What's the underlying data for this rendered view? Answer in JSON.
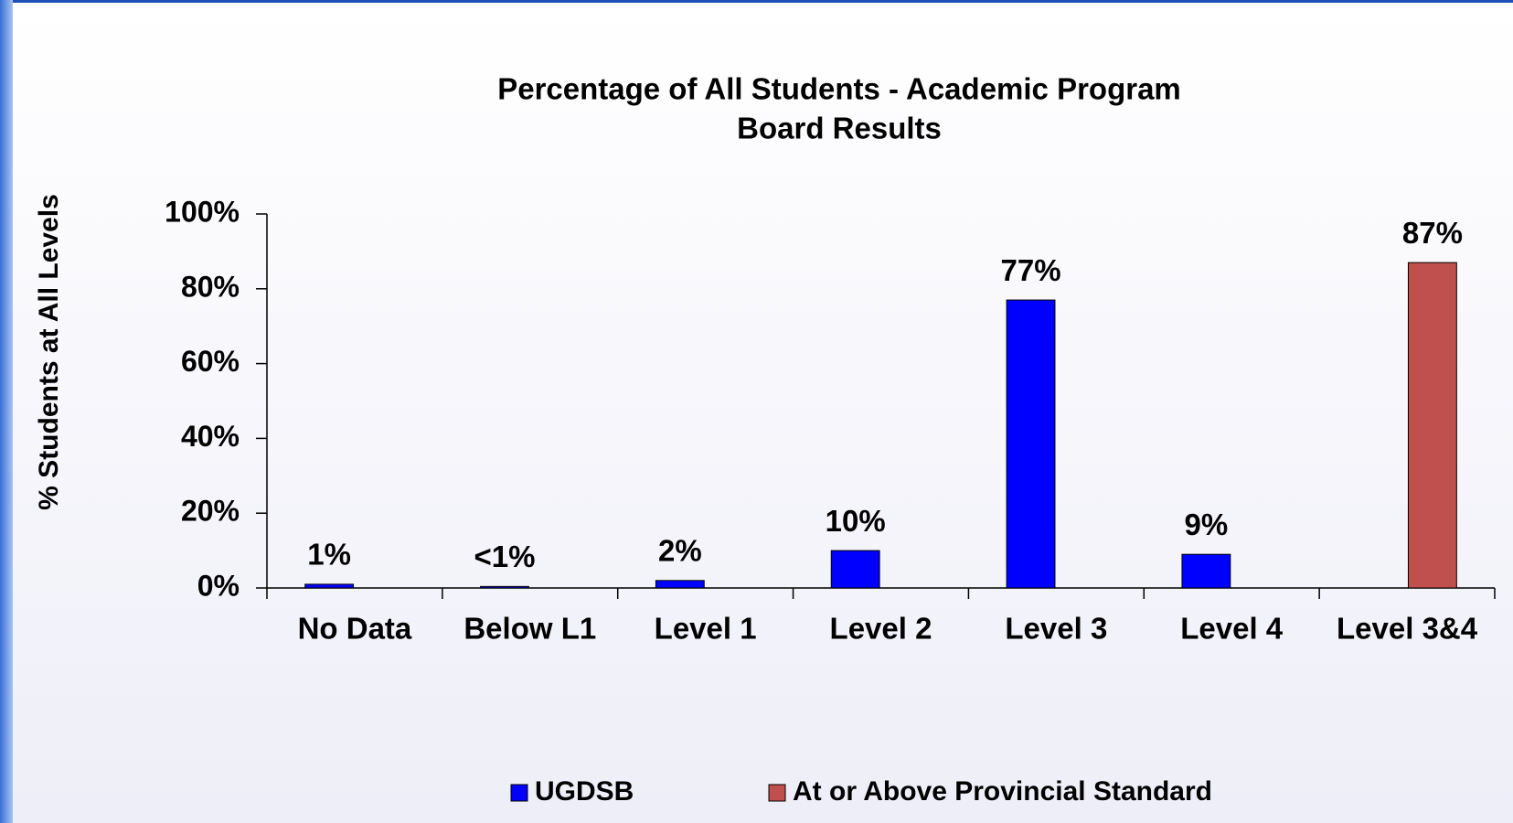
{
  "chart_data": {
    "type": "bar",
    "title": "Percentage of All Students - Academic Program",
    "subtitle": "Board Results",
    "y_label": "% Students at All Levels",
    "categories": [
      "No Data",
      "Below L1",
      "Level 1",
      "Level 2",
      "Level 3",
      "Level 4",
      "Level 3&4"
    ],
    "series": [
      {
        "name": "UGDSB",
        "color": "#0000ff",
        "values": [
          1,
          0.4,
          2,
          10,
          77,
          9,
          null
        ],
        "value_labels": [
          "1%",
          "<1%",
          "2%",
          "10%",
          "77%",
          "9%",
          null
        ]
      },
      {
        "name": "At or Above Provincial Standard",
        "color": "#c0504d",
        "values": [
          null,
          null,
          null,
          null,
          null,
          null,
          87
        ],
        "value_labels": [
          null,
          null,
          null,
          null,
          null,
          null,
          "87%"
        ]
      }
    ],
    "ylim": [
      0,
      100
    ],
    "yticks": [
      {
        "value": 0,
        "label": "0%"
      },
      {
        "value": 20,
        "label": "20%"
      },
      {
        "value": 40,
        "label": "40%"
      },
      {
        "value": 60,
        "label": "60%"
      },
      {
        "value": 80,
        "label": "80%"
      },
      {
        "value": 100,
        "label": "100%"
      }
    ],
    "legend": "bottom"
  }
}
